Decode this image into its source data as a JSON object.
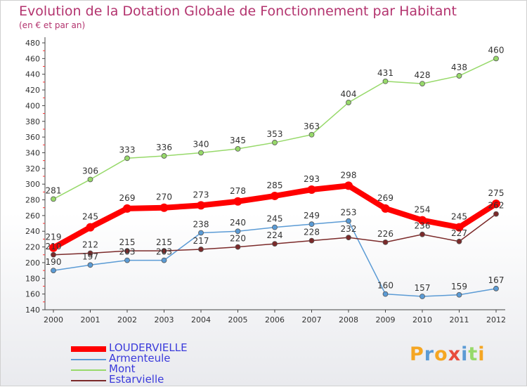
{
  "chart_data": {
    "type": "line",
    "title": "Evolution de la Dotation Globale de Fonctionnement par Habitant",
    "subtitle": "(en € et par an)",
    "x": [
      "2000",
      "2001",
      "2002",
      "2003",
      "2004",
      "2005",
      "2006",
      "2007",
      "2008",
      "2009",
      "2010",
      "2011",
      "2012"
    ],
    "ylim": [
      140,
      480
    ],
    "yticks": [
      140,
      160,
      180,
      200,
      220,
      240,
      260,
      280,
      300,
      320,
      340,
      360,
      380,
      400,
      420,
      440,
      460,
      480
    ],
    "grid": false,
    "legend_position": "bottom-left",
    "series": [
      {
        "name": "Mont",
        "color": "#97d96a",
        "values": [
          281,
          306,
          333,
          336,
          340,
          345,
          353,
          363,
          404,
          431,
          428,
          438,
          460
        ]
      },
      {
        "name": "Armenteule",
        "color": "#5b9bd5",
        "values": [
          190,
          197,
          203,
          203,
          238,
          240,
          245,
          249,
          253,
          160,
          157,
          159,
          167
        ]
      },
      {
        "name": "Estarvielle",
        "color": "#7b2a2a",
        "values": [
          210,
          212,
          215,
          215,
          217,
          220,
          224,
          228,
          232,
          226,
          236,
          227,
          262
        ]
      },
      {
        "name": "LOUDERVIELLE",
        "color": "#ff0000",
        "values": [
          219,
          245,
          269,
          270,
          273,
          278,
          285,
          293,
          298,
          269,
          254,
          245,
          275
        ]
      }
    ]
  },
  "legend": [
    {
      "name": "LOUDERVIELLE",
      "color": "#ff0000"
    },
    {
      "name": "Armenteule",
      "color": "#5b9bd5"
    },
    {
      "name": "Mont",
      "color": "#97d96a"
    },
    {
      "name": "Estarvielle",
      "color": "#7b2a2a"
    }
  ],
  "logo": {
    "text": "Proxiti",
    "letter_colors": [
      "#f5a623",
      "#5b9bd5",
      "#f5a623",
      "#e84c3d",
      "#5b9bd5",
      "#97d96a",
      "#f5a623"
    ]
  }
}
